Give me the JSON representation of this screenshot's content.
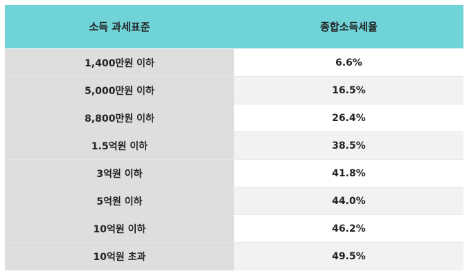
{
  "table": {
    "headers": {
      "bracket": "소득 과세표준",
      "rate": "종합소득세율"
    },
    "rows": [
      {
        "bracket": "1,400만원 이하",
        "rate": "6.6%"
      },
      {
        "bracket": "5,000만원 이하",
        "rate": "16.5%"
      },
      {
        "bracket": "8,800만원 이하",
        "rate": "26.4%"
      },
      {
        "bracket": "1.5억원 이하",
        "rate": "38.5%"
      },
      {
        "bracket": "3억원 이하",
        "rate": "41.8%"
      },
      {
        "bracket": "5억원 이하",
        "rate": "44.0%"
      },
      {
        "bracket": "10억원 이하",
        "rate": "46.2%"
      },
      {
        "bracket": "10억원 초과",
        "rate": "49.5%"
      }
    ],
    "colors": {
      "header": "#6fd3d8",
      "left_column": "#dedede",
      "stripe": "#f2f2f2"
    }
  }
}
